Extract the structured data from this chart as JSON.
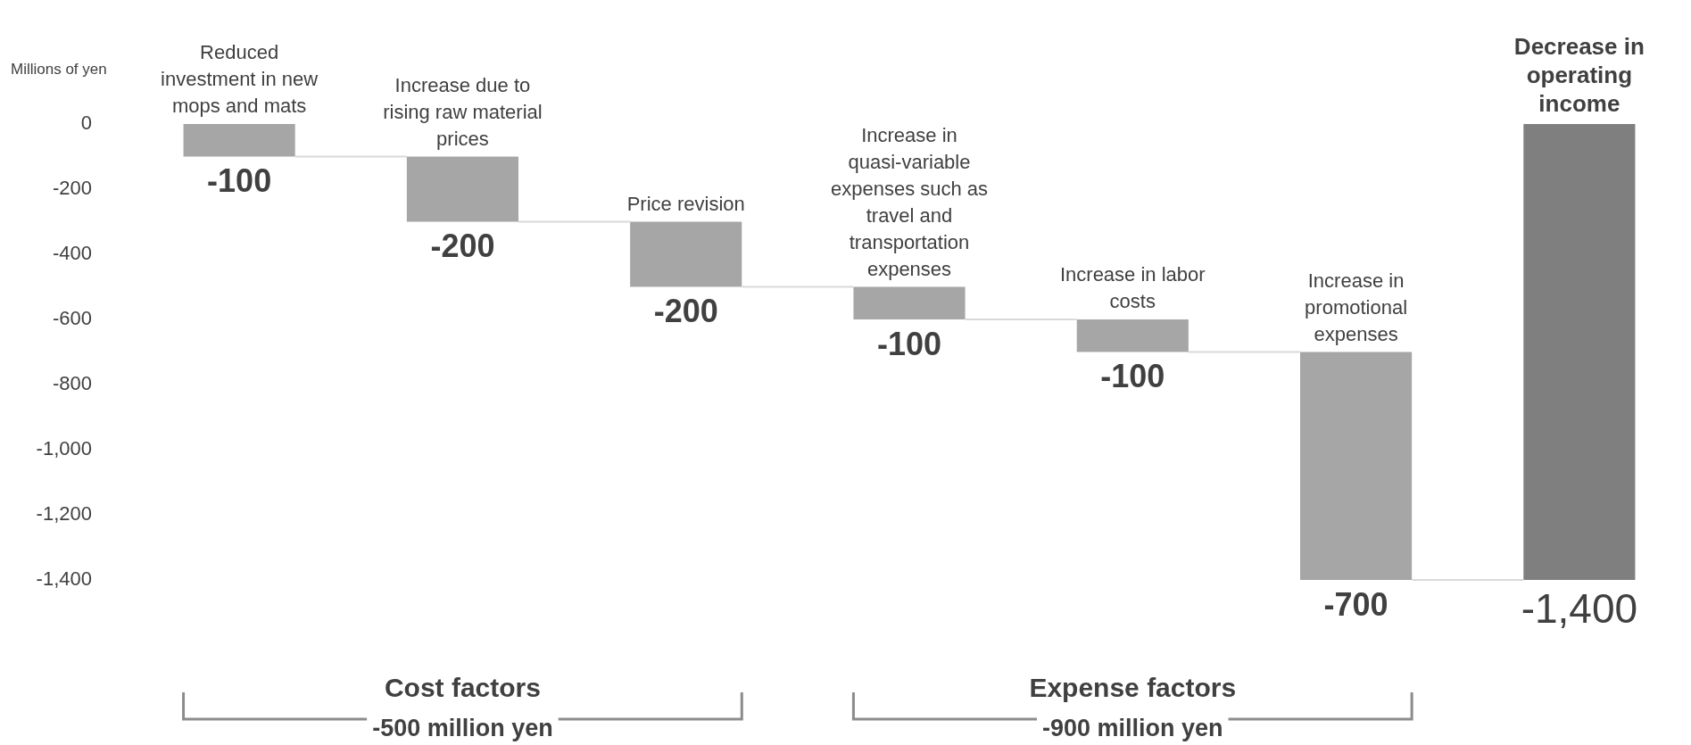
{
  "chart_data": {
    "type": "bar",
    "categories": [
      "Reduced investment in new mops and mats",
      "Increase due to rising raw material prices",
      "Price revision",
      "Increase in quasi-variable expenses such as travel and transportation expenses",
      "Increase in labor costs",
      "Increase in promotional expenses",
      "Decrease in operating income"
    ],
    "values": [
      -100,
      -200,
      -200,
      -100,
      -100,
      -700,
      -1400
    ],
    "base": [
      0,
      -100,
      -300,
      -500,
      -600,
      -700,
      0
    ],
    "colors": [
      "#a6a6a6",
      "#a6a6a6",
      "#a6a6a6",
      "#a6a6a6",
      "#a6a6a6",
      "#a6a6a6",
      "#7f7f7f"
    ],
    "value_labels": [
      "-100",
      "-200",
      "-200",
      "-100",
      "-100",
      "-700",
      "-1,400"
    ],
    "ylabel": "Millions of yen",
    "ylim": [
      -1400,
      0
    ],
    "yticks": [
      0,
      -200,
      -400,
      -600,
      -800,
      {
        "value": -1000,
        "label": "-1,000"
      },
      {
        "value": -1200,
        "label": "-1,200"
      },
      {
        "value": -1400,
        "label": "-1,400"
      }
    ],
    "tick_labels": "y",
    "grid": false,
    "legend": false,
    "annotations": [
      "Cost factors",
      "-500 million yen",
      "Expense factors",
      "-900 million yen"
    ]
  }
}
